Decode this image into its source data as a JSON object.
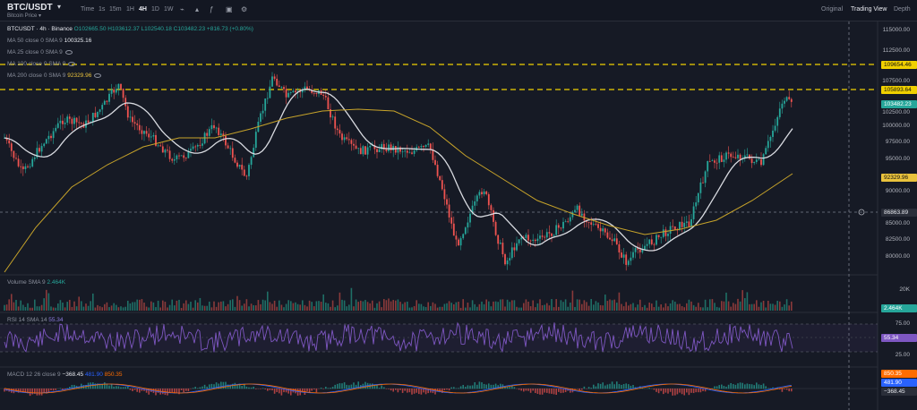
{
  "toolbar": {
    "symbol": "BTC/USDT",
    "subtitle": "Bitcoin Price",
    "timeframes": [
      "Time",
      "1s",
      "15m",
      "1H",
      "4H",
      "1D",
      "1W"
    ],
    "active_timeframe": "4H",
    "views": [
      "Original",
      "Trading View",
      "Depth"
    ],
    "active_view": "Trading View"
  },
  "legend": {
    "pair": "BTCUSDT · 4h · Binance",
    "open": "O102665.50",
    "high": "H103612.37",
    "low": "L102540.18",
    "close": "C103482.23",
    "change": "+816.73 (+0.80%)",
    "ma50_label": "MA 50 close 0 SMA 9",
    "ma50_value": "100325.16",
    "ma25_label": "MA 25 close 0 SMA 9",
    "ma100_label": "MA 100 close 0 SMA 9",
    "ma200_label": "MA 200 close 0 SMA 9",
    "ma200_value": "92329.96",
    "volume_label": "Volume SMA 9",
    "volume_value": "2.464K",
    "rsi_label": "RSI 14 SMA 14",
    "rsi_value": "55.34",
    "macd_label": "MACD 12 26 close 9",
    "macd_v1": "−368.45",
    "macd_v2": "481.90",
    "macd_v3": "850.35"
  },
  "price_axis": [
    "115000.00",
    "112500.00",
    "107500.00",
    "102500.00",
    "100000.00",
    "97500.00",
    "95000.00",
    "90000.00",
    "85000.00",
    "82500.00",
    "80000.00"
  ],
  "price_tags": {
    "line_top": "109654.46",
    "line_second": "105893.64",
    "current": "103482.23",
    "ma200": "92329.96",
    "crosshair": "86863.89"
  },
  "volume_axis": {
    "tick": "20K",
    "current": "2.464K"
  },
  "rsi_axis": {
    "top": "75.00",
    "bottom": "25.00",
    "current": "55.34"
  },
  "macd_axis": {
    "v1": "850.35",
    "v2": "481.90",
    "v3": "−368.45"
  },
  "colors": {
    "up": "#26a69a",
    "down": "#ef5350",
    "ma_white": "#d9dbe1",
    "ma_yellow": "#c8a42a",
    "rsi": "#7e57c2",
    "macd": "#2962ff",
    "signal": "#ff6d00",
    "dashed_line": "#f0d000"
  }
}
